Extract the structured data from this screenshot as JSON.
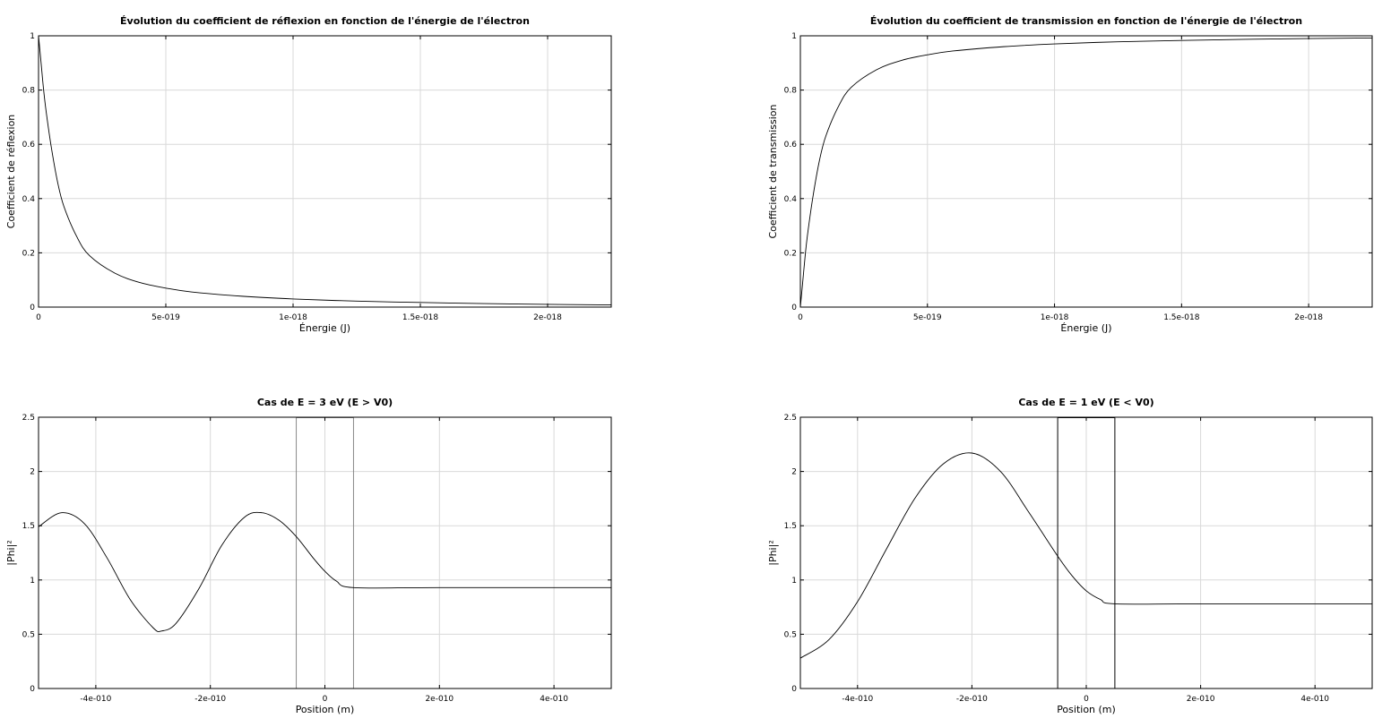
{
  "chart_data": [
    {
      "type": "line",
      "title": "Évolution du coefficient de réflexion en fonction de l'énergie de l'électron",
      "xlabel": "Énergie (J)",
      "ylabel": "Coefficient de réflexion",
      "xlim": [
        0,
        2.25e-18
      ],
      "ylim": [
        0,
        1
      ],
      "grid": true,
      "x_ticks": [
        0,
        5e-19,
        1e-18,
        1.5e-18,
        2e-18
      ],
      "x_tick_labels": [
        "0",
        "5e-019",
        "1e-018",
        "1.5e-018",
        "2e-018"
      ],
      "y_ticks": [
        0,
        0.2,
        0.4,
        0.6,
        0.8,
        1
      ],
      "y_tick_labels": [
        "0",
        "0.2",
        "0.4",
        "0.6",
        "0.8",
        "1"
      ],
      "series": [
        {
          "color": "#000000",
          "x": [
            0,
            1e-20,
            2e-20,
            3e-20,
            5e-20,
            7.5e-20,
            1e-19,
            1.5e-19,
            2e-19,
            3e-19,
            4e-19,
            5e-19,
            6e-19,
            8e-19,
            1e-18,
            1.25e-18,
            1.5e-18,
            1.75e-18,
            2e-18,
            2.25e-18
          ],
          "y": [
            1.0,
            0.9,
            0.8,
            0.72,
            0.59,
            0.46,
            0.37,
            0.26,
            0.19,
            0.125,
            0.09,
            0.07,
            0.056,
            0.04,
            0.03,
            0.022,
            0.017,
            0.013,
            0.01,
            0.008
          ]
        }
      ]
    },
    {
      "type": "line",
      "title": "Évolution du coefficient de transmission en fonction de l'énergie de l'électron",
      "xlabel": "Énergie (J)",
      "ylabel": "Coefficient de transmission",
      "xlim": [
        0,
        2.25e-18
      ],
      "ylim": [
        0,
        1
      ],
      "grid": true,
      "x_ticks": [
        0,
        5e-19,
        1e-18,
        1.5e-18,
        2e-18
      ],
      "x_tick_labels": [
        "0",
        "5e-019",
        "1e-018",
        "1.5e-018",
        "2e-018"
      ],
      "y_ticks": [
        0,
        0.2,
        0.4,
        0.6,
        0.8,
        1
      ],
      "y_tick_labels": [
        "0",
        "0.2",
        "0.4",
        "0.6",
        "0.8",
        "1"
      ],
      "series": [
        {
          "color": "#000000",
          "x": [
            0,
            1e-20,
            2e-20,
            3e-20,
            5e-20,
            7.5e-20,
            1e-19,
            1.5e-19,
            2e-19,
            3e-19,
            4e-19,
            5e-19,
            6e-19,
            8e-19,
            1e-18,
            1.25e-18,
            1.5e-18,
            1.75e-18,
            2e-18,
            2.25e-18
          ],
          "y": [
            0.0,
            0.1,
            0.2,
            0.28,
            0.41,
            0.54,
            0.63,
            0.74,
            0.81,
            0.875,
            0.91,
            0.93,
            0.944,
            0.96,
            0.97,
            0.978,
            0.983,
            0.987,
            0.99,
            0.992
          ]
        }
      ]
    },
    {
      "type": "line",
      "title": "Cas de E = 3 eV (E > V0)",
      "xlabel": "Position (m)",
      "ylabel": "|Phi|²",
      "xlim": [
        -5e-10,
        5e-10
      ],
      "ylim": [
        0,
        2.5
      ],
      "grid": true,
      "x_ticks": [
        -4e-10,
        -2e-10,
        0,
        2e-10,
        4e-10
      ],
      "x_tick_labels": [
        "-4e-010",
        "-2e-010",
        "0",
        "2e-010",
        "4e-010"
      ],
      "y_ticks": [
        0,
        0.5,
        1,
        1.5,
        2,
        2.5
      ],
      "y_tick_labels": [
        "0",
        "0.5",
        "1",
        "1.5",
        "2",
        "2.5"
      ],
      "barrier": {
        "x_left": -5e-11,
        "x_right": 5e-11,
        "color": "#888888"
      },
      "series": [
        {
          "color": "#000000",
          "x": [
            -5e-10,
            -4.6e-10,
            -4.2e-10,
            -3.8e-10,
            -3.4e-10,
            -3e-10,
            -2.85e-10,
            -2.6e-10,
            -2.2e-10,
            -1.8e-10,
            -1.4e-10,
            -1.1e-10,
            -8e-11,
            -5e-11,
            -2e-11,
            0,
            2e-11,
            5e-11,
            2e-10,
            5e-10
          ],
          "y": [
            1.49,
            1.62,
            1.52,
            1.2,
            0.82,
            0.56,
            0.53,
            0.6,
            0.92,
            1.32,
            1.58,
            1.62,
            1.55,
            1.4,
            1.2,
            1.08,
            0.99,
            0.93,
            0.93,
            0.93
          ]
        }
      ]
    },
    {
      "type": "line",
      "title": "Cas de E = 1 eV (E < V0)",
      "xlabel": "Position (m)",
      "ylabel": "|Phi|²",
      "xlim": [
        -5e-10,
        5e-10
      ],
      "ylim": [
        0,
        2.5
      ],
      "grid": true,
      "x_ticks": [
        -4e-10,
        -2e-10,
        0,
        2e-10,
        4e-10
      ],
      "x_tick_labels": [
        "-4e-010",
        "-2e-010",
        "0",
        "2e-010",
        "4e-010"
      ],
      "y_ticks": [
        0,
        0.5,
        1,
        1.5,
        2,
        2.5
      ],
      "y_tick_labels": [
        "0",
        "0.5",
        "1",
        "1.5",
        "2",
        "2.5"
      ],
      "barrier": {
        "x_left": -5e-11,
        "x_right": 5e-11,
        "color": "#000000"
      },
      "series": [
        {
          "color": "#000000",
          "x": [
            -5e-10,
            -4.5e-10,
            -4e-10,
            -3.5e-10,
            -3e-10,
            -2.5e-10,
            -2e-10,
            -1.5e-10,
            -1e-10,
            -5e-11,
            -2.5e-11,
            0,
            2.5e-11,
            5e-11,
            2e-10,
            5e-10
          ],
          "y": [
            0.28,
            0.45,
            0.8,
            1.28,
            1.75,
            2.07,
            2.17,
            2.0,
            1.62,
            1.22,
            1.04,
            0.9,
            0.82,
            0.78,
            0.78,
            0.78
          ]
        }
      ]
    }
  ]
}
